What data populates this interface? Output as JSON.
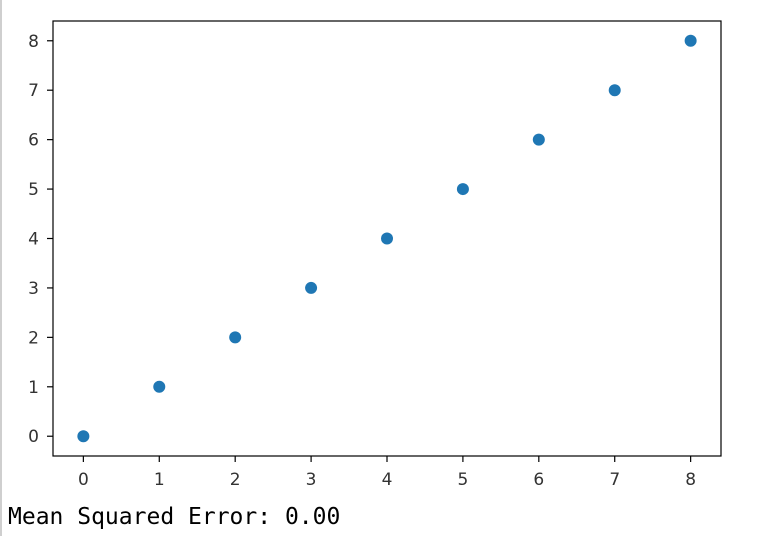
{
  "chart_data": {
    "type": "scatter",
    "title": "",
    "xlabel": "",
    "ylabel": "",
    "x": [
      0,
      1,
      2,
      3,
      4,
      5,
      6,
      7,
      8
    ],
    "y": [
      0,
      1,
      2,
      3,
      4,
      5,
      6,
      7,
      8
    ],
    "x_ticks": [
      "0",
      "1",
      "2",
      "3",
      "4",
      "5",
      "6",
      "7",
      "8"
    ],
    "y_ticks": [
      "0",
      "1",
      "2",
      "3",
      "4",
      "5",
      "6",
      "7",
      "8"
    ],
    "xlim": [
      -0.4,
      8.4
    ],
    "ylim": [
      -0.4,
      8.4
    ],
    "grid": false,
    "marker_color": "#1f77b4"
  },
  "output": {
    "mse_text": "Mean Squared Error: 0.00"
  }
}
